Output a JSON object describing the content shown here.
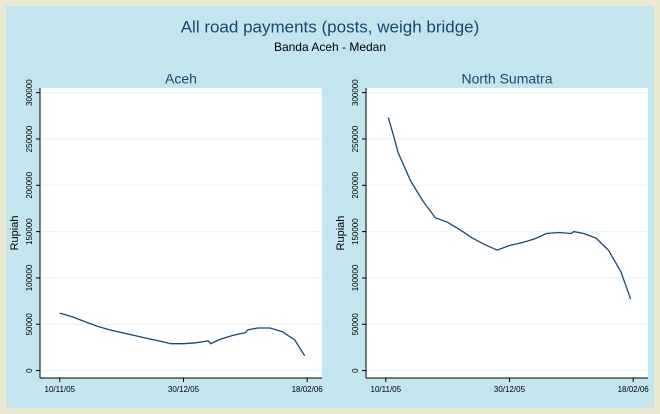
{
  "title": "All road payments (posts, weigh bridge)",
  "subtitle": "Banda Aceh - Medan",
  "chart_data": [
    {
      "type": "line",
      "title": "Aceh",
      "ylabel": "Rupiah",
      "color": "#1a476f",
      "x": [
        "2005-11-10",
        "2005-11-15",
        "2005-11-20",
        "2005-11-25",
        "2005-11-30",
        "2005-12-05",
        "2005-12-10",
        "2005-12-15",
        "2005-12-20",
        "2005-12-25",
        "2005-12-30",
        "2006-01-04",
        "2006-01-09",
        "2006-01-10",
        "2006-01-14",
        "2006-01-19",
        "2006-01-24",
        "2006-01-25",
        "2006-01-29",
        "2006-02-03",
        "2006-02-08",
        "2006-02-13",
        "2006-02-17"
      ],
      "values": [
        62000,
        58000,
        53000,
        48000,
        44000,
        41000,
        38000,
        35000,
        32000,
        29000,
        29000,
        30000,
        32000,
        29000,
        34000,
        38000,
        41000,
        44000,
        46000,
        46000,
        42000,
        33000,
        16000
      ],
      "xlim": [
        "2005-11-02",
        "2006-02-24"
      ],
      "ylim": [
        -8000,
        305000
      ],
      "xticks": [
        {
          "value": "2005-11-10",
          "label": "10/11/05"
        },
        {
          "value": "2005-12-30",
          "label": "30/12/05"
        },
        {
          "value": "2006-02-18",
          "label": "18/02/06"
        }
      ],
      "yticks": [
        0,
        50000,
        100000,
        150000,
        200000,
        250000,
        300000
      ],
      "grid": true
    },
    {
      "type": "line",
      "title": "North Sumatra",
      "ylabel": "Rupiah",
      "color": "#1a476f",
      "x": [
        "2005-11-11",
        "2005-11-13",
        "2005-11-15",
        "2005-11-20",
        "2005-11-25",
        "2005-11-30",
        "2005-12-05",
        "2005-12-10",
        "2005-12-15",
        "2005-12-20",
        "2005-12-25",
        "2005-12-30",
        "2006-01-04",
        "2006-01-09",
        "2006-01-14",
        "2006-01-19",
        "2006-01-24",
        "2006-01-25",
        "2006-01-29",
        "2006-02-03",
        "2006-02-08",
        "2006-02-13",
        "2006-02-17"
      ],
      "values": [
        273000,
        255000,
        235000,
        205000,
        183000,
        165000,
        160000,
        152000,
        143000,
        136000,
        130000,
        135000,
        138000,
        142000,
        148000,
        149000,
        148000,
        150000,
        148000,
        143000,
        130000,
        107000,
        77000
      ],
      "xlim": [
        "2005-11-02",
        "2006-02-24"
      ],
      "ylim": [
        -8000,
        305000
      ],
      "xticks": [
        {
          "value": "2005-11-10",
          "label": "10/11/05"
        },
        {
          "value": "2005-12-30",
          "label": "30/12/05"
        },
        {
          "value": "2006-02-18",
          "label": "18/02/06"
        }
      ],
      "yticks": [
        0,
        50000,
        100000,
        150000,
        200000,
        250000,
        300000
      ],
      "grid": true
    }
  ]
}
